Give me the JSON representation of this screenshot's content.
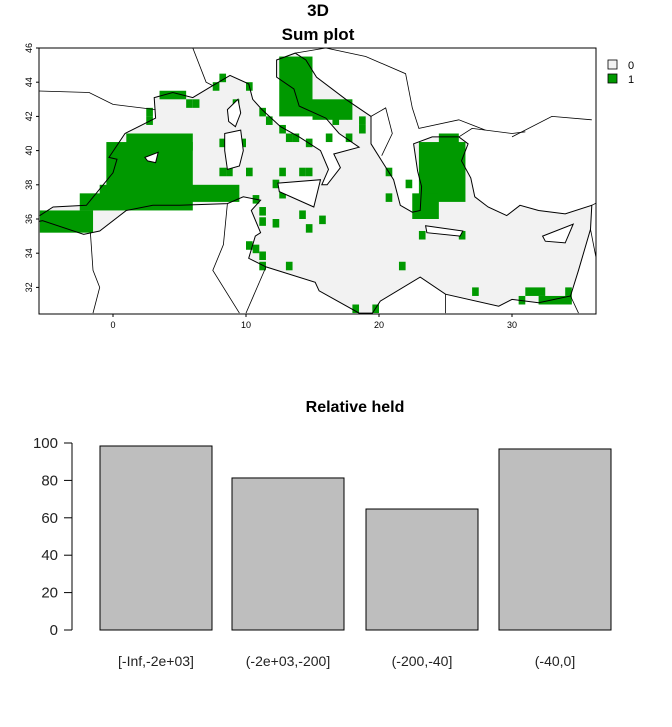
{
  "figure_title": "3D",
  "chart_data": [
    {
      "type": "heatmap",
      "title": "Sum plot",
      "xlim": [
        -5.5,
        36.3
      ],
      "ylim": [
        30.5,
        46
      ],
      "x_ticks": [
        "0",
        "10",
        "20",
        "30"
      ],
      "y_ticks": [
        "32",
        "34",
        "36",
        "38",
        "40",
        "42",
        "44",
        "46"
      ],
      "legend": {
        "placement": "top-right",
        "entries": [
          {
            "label": "0",
            "color": "#f2f2f2"
          },
          {
            "label": "1",
            "color": "#009900"
          }
        ]
      },
      "cell_size_deg": 0.5,
      "value_1_regions_lon_lat": [
        [
          -5.5,
          -1.5,
          35.2,
          36.5
        ],
        [
          -2.5,
          6.0,
          36.5,
          37.5
        ],
        [
          -1.0,
          9.5,
          37.0,
          38.0
        ],
        [
          -0.5,
          6.0,
          37.5,
          40.5
        ],
        [
          1.0,
          6.0,
          40.0,
          41.0
        ],
        [
          3.5,
          5.5,
          43.0,
          43.5
        ],
        [
          12.5,
          15.0,
          42.0,
          45.5
        ],
        [
          13.5,
          15.0,
          43.5,
          45.0
        ],
        [
          15.0,
          18.0,
          41.8,
          43.0
        ],
        [
          23.0,
          26.5,
          37.0,
          40.5
        ],
        [
          22.5,
          24.5,
          36.0,
          37.5
        ],
        [
          24.5,
          26.0,
          40.0,
          41.0
        ],
        [
          31.0,
          32.5,
          31.5,
          32.0
        ],
        [
          32.0,
          34.5,
          31.0,
          31.5
        ]
      ],
      "value_1_cells_lon_lat": [
        [
          9,
          42.5
        ],
        [
          10,
          43.5
        ],
        [
          8,
          44
        ],
        [
          11,
          42
        ],
        [
          11.5,
          41.5
        ],
        [
          12.5,
          41
        ],
        [
          13,
          40.5
        ],
        [
          13.5,
          40.5
        ],
        [
          14.5,
          40.2
        ],
        [
          8,
          40.2
        ],
        [
          9.5,
          40.2
        ],
        [
          8,
          38.5
        ],
        [
          8.5,
          38.5
        ],
        [
          10,
          38.5
        ],
        [
          12.5,
          38.5
        ],
        [
          12,
          37.8
        ],
        [
          14,
          38.5
        ],
        [
          14.5,
          38.5
        ],
        [
          12.5,
          37.2
        ],
        [
          10.5,
          36.9
        ],
        [
          11,
          36.2
        ],
        [
          11,
          35.6
        ],
        [
          12,
          35.5
        ],
        [
          14,
          36
        ],
        [
          14.5,
          35.2
        ],
        [
          15.5,
          35.7
        ],
        [
          10,
          34.2
        ],
        [
          10.5,
          34
        ],
        [
          11,
          33.6
        ],
        [
          11,
          33
        ],
        [
          13,
          33
        ],
        [
          21.5,
          33
        ],
        [
          20.5,
          38.5
        ],
        [
          20.5,
          37
        ],
        [
          22,
          37.8
        ],
        [
          23,
          34.8
        ],
        [
          26,
          34.8
        ],
        [
          27,
          31.5
        ],
        [
          18,
          30.5
        ],
        [
          19.5,
          30.5
        ],
        [
          17.5,
          40.5
        ],
        [
          18.5,
          41
        ],
        [
          18.5,
          41.5
        ],
        [
          16,
          40.5
        ],
        [
          16.5,
          41.5
        ],
        [
          7.5,
          43.5
        ],
        [
          2.5,
          42
        ],
        [
          6,
          42.5
        ],
        [
          5.5,
          42.5
        ],
        [
          2.5,
          41.5
        ],
        [
          30.5,
          31
        ],
        [
          34,
          31.5
        ]
      ]
    },
    {
      "type": "bar",
      "title": "Relative held",
      "categories": [
        "[-Inf,-2e+03]",
        "(-2e+03,-200]",
        "(-200,-40]",
        "(-40,0]"
      ],
      "values": [
        98.4,
        81.3,
        64.7,
        96.8
      ],
      "ylim": [
        0,
        100
      ],
      "y_ticks": [
        "0",
        "20",
        "40",
        "60",
        "80",
        "100"
      ],
      "bar_color": "#bebebe",
      "xlabel": "",
      "ylabel": ""
    }
  ]
}
